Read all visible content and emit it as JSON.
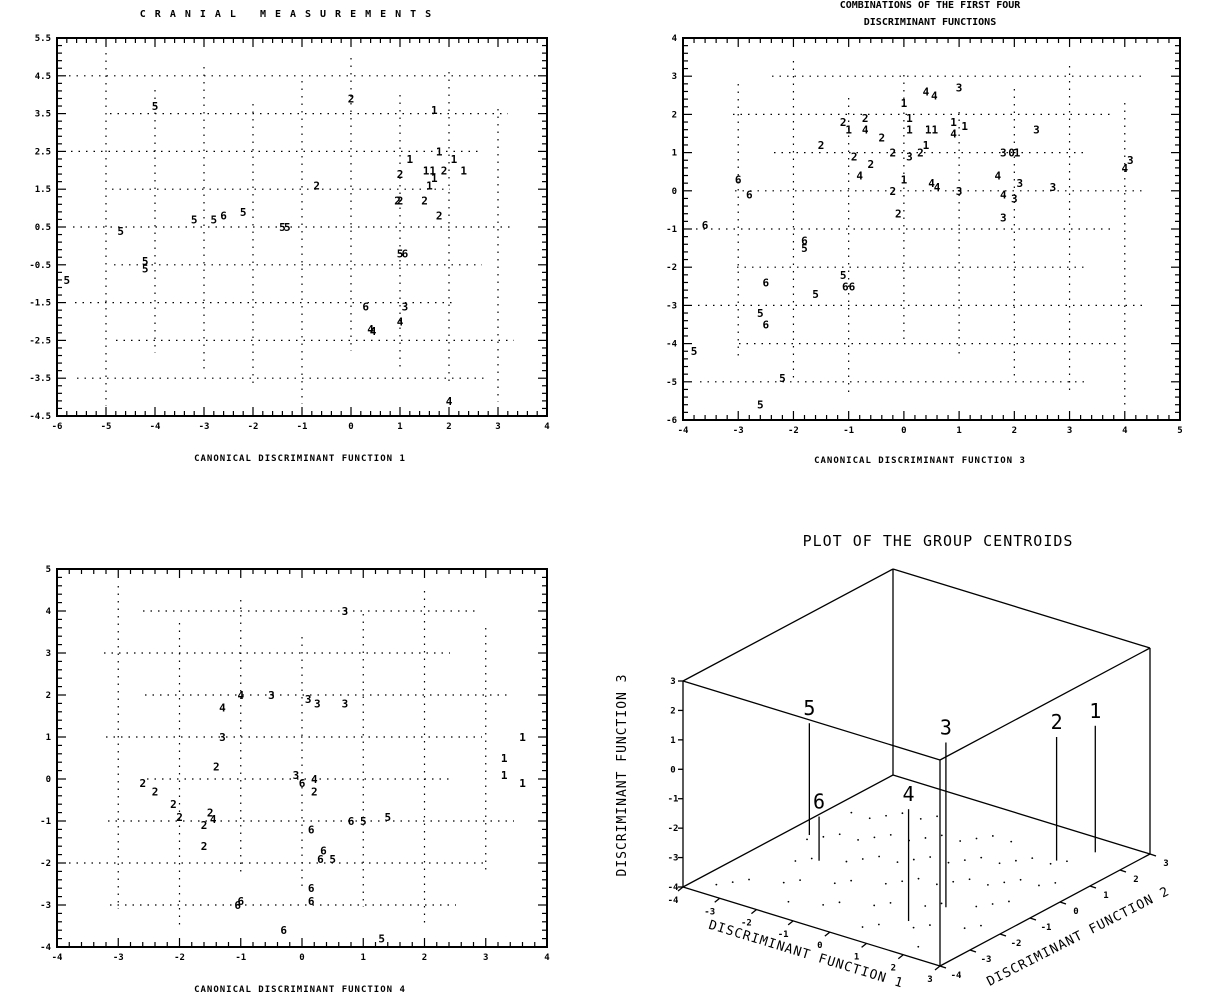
{
  "chart_data": [
    {
      "type": "scatter",
      "title": "CRANIAL MEASUREMENTS",
      "xlabel": "CANONICAL DISCRIMINANT FUNCTION 1",
      "ylabel": "",
      "xlim": [
        -6,
        4
      ],
      "ylim": [
        -4.5,
        5.5
      ],
      "xticks": [
        -6,
        -5,
        -4,
        -3,
        -2,
        -1,
        0,
        1,
        2,
        3,
        4
      ],
      "yticks": [
        5.5,
        4.5,
        3.5,
        2.5,
        1.5,
        0.5,
        -0.5,
        -1.5,
        -2.5,
        -3.5,
        -4.5
      ],
      "ytick_labels": [
        "5.5",
        "4.5",
        "3.5",
        "2.5",
        "1.5",
        "0.5",
        "-0.5",
        "-1.5",
        "-2.5",
        "-3.5",
        "-4.5"
      ],
      "grid": "dotted",
      "points": [
        {
          "x": -4.0,
          "y": 3.7,
          "g": "5"
        },
        {
          "x": 0.0,
          "y": 3.9,
          "g": "2"
        },
        {
          "x": 1.7,
          "y": 3.6,
          "g": "1"
        },
        {
          "x": 1.2,
          "y": 2.3,
          "g": "1"
        },
        {
          "x": 1.8,
          "y": 2.5,
          "g": "1"
        },
        {
          "x": 2.1,
          "y": 2.3,
          "g": "1"
        },
        {
          "x": 1.6,
          "y": 2.0,
          "g": "11"
        },
        {
          "x": 1.7,
          "y": 1.8,
          "g": "1"
        },
        {
          "x": 1.9,
          "y": 2.0,
          "g": "2"
        },
        {
          "x": 2.3,
          "y": 2.0,
          "g": "1"
        },
        {
          "x": 1.6,
          "y": 1.6,
          "g": "1"
        },
        {
          "x": 1.0,
          "y": 1.9,
          "g": "2"
        },
        {
          "x": -0.7,
          "y": 1.6,
          "g": "2"
        },
        {
          "x": 1.0,
          "y": 1.2,
          "g": "2"
        },
        {
          "x": 0.95,
          "y": 1.2,
          "g": "2"
        },
        {
          "x": 1.5,
          "y": 1.2,
          "g": "2"
        },
        {
          "x": 1.8,
          "y": 0.8,
          "g": "2"
        },
        {
          "x": -2.2,
          "y": 0.9,
          "g": "5"
        },
        {
          "x": -2.6,
          "y": 0.8,
          "g": "6"
        },
        {
          "x": -2.8,
          "y": 0.7,
          "g": "5"
        },
        {
          "x": -3.2,
          "y": 0.7,
          "g": "5"
        },
        {
          "x": -1.4,
          "y": 0.5,
          "g": "5"
        },
        {
          "x": -1.3,
          "y": 0.5,
          "g": "5"
        },
        {
          "x": -4.7,
          "y": 0.4,
          "g": "5"
        },
        {
          "x": 1.1,
          "y": -0.2,
          "g": "6"
        },
        {
          "x": 1.0,
          "y": -0.2,
          "g": "5"
        },
        {
          "x": -4.2,
          "y": -0.4,
          "g": "5"
        },
        {
          "x": -4.2,
          "y": -0.6,
          "g": "5"
        },
        {
          "x": -5.8,
          "y": -0.9,
          "g": "5"
        },
        {
          "x": 0.3,
          "y": -1.6,
          "g": "6"
        },
        {
          "x": 1.1,
          "y": -1.6,
          "g": "3"
        },
        {
          "x": 1.0,
          "y": -2.0,
          "g": "4"
        },
        {
          "x": 0.4,
          "y": -2.2,
          "g": "4"
        },
        {
          "x": 0.45,
          "y": -2.25,
          "g": "4"
        },
        {
          "x": 2.0,
          "y": -4.1,
          "g": "4"
        }
      ]
    },
    {
      "type": "scatter",
      "title": "COMBINATIONS OF THE FIRST FOUR",
      "subtitle": "DISCRIMINANT FUNCTIONS",
      "xlabel": "CANONICAL DISCRIMINANT FUNCTION 3",
      "ylabel": "",
      "xlim": [
        -4,
        5
      ],
      "ylim": [
        -6,
        4
      ],
      "xticks": [
        -4,
        -3,
        -2,
        -1,
        0,
        1,
        2,
        3,
        4,
        5
      ],
      "yticks": [
        4,
        3,
        2,
        1,
        0,
        -1,
        -2,
        -3,
        -4,
        -5,
        -6
      ],
      "ytick_labels": [
        "4",
        "3",
        "2",
        "1",
        "0",
        "-1",
        "-2",
        "-3",
        "-4",
        "-5",
        "-6"
      ],
      "grid": "dotted",
      "points": [
        {
          "x": 0.0,
          "y": 2.3,
          "g": "1"
        },
        {
          "x": 0.4,
          "y": 2.6,
          "g": "4"
        },
        {
          "x": 0.55,
          "y": 2.5,
          "g": "4"
        },
        {
          "x": 1.0,
          "y": 2.7,
          "g": "3"
        },
        {
          "x": -1.1,
          "y": 1.8,
          "g": "2"
        },
        {
          "x": -1.0,
          "y": 1.6,
          "g": "1"
        },
        {
          "x": -0.7,
          "y": 1.9,
          "g": "2"
        },
        {
          "x": -0.7,
          "y": 1.6,
          "g": "4"
        },
        {
          "x": -0.4,
          "y": 1.4,
          "g": "2"
        },
        {
          "x": 0.1,
          "y": 1.9,
          "g": "1"
        },
        {
          "x": 0.1,
          "y": 1.6,
          "g": "1"
        },
        {
          "x": 0.5,
          "y": 1.6,
          "g": "11"
        },
        {
          "x": 0.9,
          "y": 1.8,
          "g": "1"
        },
        {
          "x": 1.1,
          "y": 1.7,
          "g": "1"
        },
        {
          "x": 0.9,
          "y": 1.5,
          "g": "4"
        },
        {
          "x": 2.4,
          "y": 1.6,
          "g": "3"
        },
        {
          "x": -1.5,
          "y": 1.2,
          "g": "2"
        },
        {
          "x": -0.9,
          "y": 0.9,
          "g": "2"
        },
        {
          "x": -0.6,
          "y": 0.7,
          "g": "2"
        },
        {
          "x": -0.2,
          "y": 1.0,
          "g": "2"
        },
        {
          "x": 0.1,
          "y": 0.9,
          "g": "3"
        },
        {
          "x": 0.3,
          "y": 1.0,
          "g": "2"
        },
        {
          "x": 0.4,
          "y": 1.2,
          "g": "1"
        },
        {
          "x": 1.8,
          "y": 1.0,
          "g": "3"
        },
        {
          "x": 1.95,
          "y": 1.0,
          "g": "0"
        },
        {
          "x": 2.05,
          "y": 1.0,
          "g": "1"
        },
        {
          "x": -0.8,
          "y": 0.4,
          "g": "4"
        },
        {
          "x": -3.0,
          "y": 0.3,
          "g": "6"
        },
        {
          "x": -2.8,
          "y": -0.1,
          "g": "6"
        },
        {
          "x": -0.2,
          "y": 0.0,
          "g": "2"
        },
        {
          "x": 0.0,
          "y": 0.3,
          "g": "1"
        },
        {
          "x": 0.5,
          "y": 0.2,
          "g": "4"
        },
        {
          "x": 0.6,
          "y": 0.1,
          "g": "4"
        },
        {
          "x": 1.0,
          "y": 0.0,
          "g": "3"
        },
        {
          "x": 1.7,
          "y": 0.4,
          "g": "4"
        },
        {
          "x": 1.8,
          "y": -0.1,
          "g": "4"
        },
        {
          "x": 2.0,
          "y": -0.2,
          "g": "3"
        },
        {
          "x": 2.1,
          "y": 0.2,
          "g": "3"
        },
        {
          "x": 2.7,
          "y": 0.1,
          "g": "3"
        },
        {
          "x": 4.0,
          "y": 0.6,
          "g": "4"
        },
        {
          "x": 4.1,
          "y": 0.8,
          "g": "3"
        },
        {
          "x": -0.1,
          "y": -0.6,
          "g": "2"
        },
        {
          "x": 1.8,
          "y": -0.7,
          "g": "3"
        },
        {
          "x": -3.6,
          "y": -0.9,
          "g": "6"
        },
        {
          "x": -1.8,
          "y": -1.3,
          "g": "6"
        },
        {
          "x": -1.8,
          "y": -1.5,
          "g": "5"
        },
        {
          "x": -1.1,
          "y": -2.2,
          "g": "5"
        },
        {
          "x": -1.0,
          "y": -2.5,
          "g": "66"
        },
        {
          "x": -1.6,
          "y": -2.7,
          "g": "5"
        },
        {
          "x": -2.5,
          "y": -2.4,
          "g": "6"
        },
        {
          "x": -2.6,
          "y": -3.2,
          "g": "5"
        },
        {
          "x": -2.5,
          "y": -3.5,
          "g": "6"
        },
        {
          "x": -3.8,
          "y": -4.2,
          "g": "5"
        },
        {
          "x": -2.2,
          "y": -4.9,
          "g": "5"
        },
        {
          "x": -2.6,
          "y": -5.6,
          "g": "5"
        }
      ]
    },
    {
      "type": "scatter",
      "title": "",
      "xlabel": "CANONICAL DISCRIMINANT FUNCTION 4",
      "ylabel": "",
      "xlim": [
        -4,
        4
      ],
      "ylim": [
        -4,
        5
      ],
      "xticks": [
        -4,
        -3,
        -2,
        -1,
        0,
        1,
        2,
        3,
        4
      ],
      "yticks": [
        5,
        4,
        3,
        2,
        1,
        0,
        -1,
        -2,
        -3,
        -4
      ],
      "ytick_labels": [
        "5",
        "4",
        "3",
        "2",
        "1",
        "0",
        "-1",
        "-2",
        "-3",
        "-4"
      ],
      "grid": "dotted",
      "points": [
        {
          "x": 0.7,
          "y": 4.0,
          "g": "3"
        },
        {
          "x": -1.0,
          "y": 2.0,
          "g": "4"
        },
        {
          "x": -1.3,
          "y": 1.7,
          "g": "4"
        },
        {
          "x": -0.5,
          "y": 2.0,
          "g": "3"
        },
        {
          "x": 0.1,
          "y": 1.9,
          "g": "3"
        },
        {
          "x": 0.25,
          "y": 1.8,
          "g": "3"
        },
        {
          "x": 0.7,
          "y": 1.8,
          "g": "3"
        },
        {
          "x": -1.3,
          "y": 1.0,
          "g": "3"
        },
        {
          "x": -1.4,
          "y": 0.3,
          "g": "2"
        },
        {
          "x": -0.1,
          "y": 0.1,
          "g": "3"
        },
        {
          "x": 0.2,
          "y": 0.0,
          "g": "4"
        },
        {
          "x": 0.0,
          "y": -0.1,
          "g": "6"
        },
        {
          "x": 0.2,
          "y": -0.3,
          "g": "2"
        },
        {
          "x": 3.6,
          "y": 1.0,
          "g": "1"
        },
        {
          "x": 3.3,
          "y": 0.5,
          "g": "1"
        },
        {
          "x": 3.3,
          "y": 0.1,
          "g": "1"
        },
        {
          "x": 3.6,
          "y": -0.1,
          "g": "1"
        },
        {
          "x": -2.6,
          "y": -0.1,
          "g": "2"
        },
        {
          "x": -2.4,
          "y": -0.3,
          "g": "2"
        },
        {
          "x": -2.1,
          "y": -0.6,
          "g": "2"
        },
        {
          "x": -2.0,
          "y": -0.9,
          "g": "2"
        },
        {
          "x": -1.5,
          "y": -0.8,
          "g": "2"
        },
        {
          "x": -1.45,
          "y": -0.95,
          "g": "4"
        },
        {
          "x": -1.6,
          "y": -1.1,
          "g": "2"
        },
        {
          "x": -1.6,
          "y": -1.6,
          "g": "2"
        },
        {
          "x": 0.15,
          "y": -1.2,
          "g": "6"
        },
        {
          "x": 0.8,
          "y": -1.0,
          "g": "6"
        },
        {
          "x": 1.0,
          "y": -1.0,
          "g": "5"
        },
        {
          "x": 1.4,
          "y": -0.9,
          "g": "5"
        },
        {
          "x": 0.35,
          "y": -1.7,
          "g": "6"
        },
        {
          "x": 0.3,
          "y": -1.9,
          "g": "6"
        },
        {
          "x": 0.5,
          "y": -1.9,
          "g": "5"
        },
        {
          "x": -1.0,
          "y": -2.9,
          "g": "6"
        },
        {
          "x": -1.05,
          "y": -3.0,
          "g": "6"
        },
        {
          "x": 0.15,
          "y": -2.6,
          "g": "6"
        },
        {
          "x": 0.15,
          "y": -2.9,
          "g": "6"
        },
        {
          "x": -0.3,
          "y": -3.6,
          "g": "6"
        },
        {
          "x": 1.3,
          "y": -3.8,
          "g": "5"
        }
      ]
    },
    {
      "type": "scatter",
      "title": "PLOT OF THE GROUP CENTROIDS",
      "xlabel": "DISCRIMINANT FUNCTION 1",
      "ylabel": "DISCRIMINANT FUNCTION 2",
      "zlabel": "DISCRIMINANT FUNCTION 3",
      "xlim": [
        -4,
        3
      ],
      "ylim": [
        -4,
        3
      ],
      "zlim": [
        -4,
        3
      ],
      "xticks": [
        -4,
        -3,
        -2,
        -1,
        0,
        1,
        2,
        3
      ],
      "yticks": [
        -4,
        -3,
        -2,
        -1,
        0,
        1,
        2,
        3
      ],
      "zticks": [
        3,
        2,
        1,
        0,
        -1,
        -2,
        -3,
        -4
      ],
      "centroids": [
        {
          "group": "1",
          "x": 2.0,
          "y": 2.4,
          "z": 0.3
        },
        {
          "group": "2",
          "x": 1.6,
          "y": 1.6,
          "z": 0.2
        },
        {
          "group": "3",
          "x": 1.2,
          "y": -1.6,
          "z": 1.6
        },
        {
          "group": "4",
          "x": 1.0,
          "y": -2.6,
          "z": -0.2
        },
        {
          "group": "5",
          "x": -3.5,
          "y": -0.4,
          "z": -0.2
        },
        {
          "group": "6",
          "x": -2.5,
          "y": -1.3,
          "z": -2.5
        }
      ]
    }
  ]
}
